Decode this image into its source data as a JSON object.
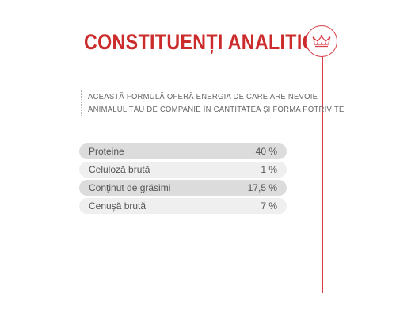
{
  "header": {
    "title": "CONSTITUENȚI ANALITICI",
    "badge_icon": "crown-icon",
    "accent_color": "#cc2b2b"
  },
  "intro": {
    "lines": [
      "ACEASTĂ FORMULĂ OFERĂ ENERGIA DE CARE ARE NEVOIE",
      "ANIMALUL TĂU DE COMPANIE ÎN CANTITATEA ȘI FORMA POTRIVITE"
    ]
  },
  "constituents": [
    {
      "label": "Proteine",
      "value": "40 %"
    },
    {
      "label": "Celuloză brută",
      "value": "1 %"
    },
    {
      "label": "Conținut de grăsimi",
      "value": "17,5 %"
    },
    {
      "label": "Cenușă brută",
      "value": "7 %"
    }
  ]
}
